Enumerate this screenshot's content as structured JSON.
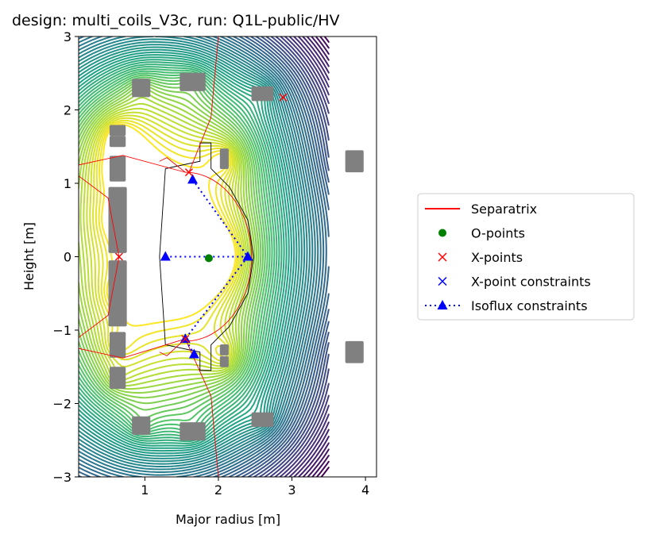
{
  "chart_data": {
    "type": "line",
    "title": "design: multi_coils_V3c, run: Q1L-public/HV",
    "xlabel": "Major radius [m]",
    "ylabel": "Height [m]",
    "xlim": [
      0.1,
      4.15
    ],
    "ylim": [
      -3,
      3
    ],
    "xticks": [
      "1",
      "2",
      "3",
      "4"
    ],
    "yticks": [
      "−3",
      "−2",
      "−1",
      "0",
      "1",
      "2",
      "3"
    ],
    "grid": false,
    "legend_placement": "right, outside plot",
    "legend": [
      {
        "label": "Separatrix",
        "color": "#ff0000",
        "marker": "line"
      },
      {
        "label": "O-points",
        "color": "#008000",
        "marker": "circle"
      },
      {
        "label": "X-points",
        "color": "#ff0000",
        "marker": "x"
      },
      {
        "label": "X-point constraints",
        "color": "#0000ff",
        "marker": "x"
      },
      {
        "label": "Isoflux constraints",
        "color": "#0000ff",
        "marker": "triangle-dotted-line"
      }
    ],
    "o_points": [
      [
        1.87,
        -0.02
      ]
    ],
    "x_points": [
      [
        0.65,
        0.0
      ],
      [
        1.6,
        1.15
      ],
      [
        1.55,
        -1.12
      ],
      [
        2.88,
        2.17
      ]
    ],
    "isoflux_constraints": [
      [
        1.28,
        0.0
      ],
      [
        1.65,
        1.05
      ],
      [
        2.4,
        0.0
      ],
      [
        1.67,
        -1.33
      ],
      [
        1.55,
        -1.12
      ]
    ],
    "coils": [
      {
        "r": 0.63,
        "z": 1.72,
        "w": 0.22,
        "h": 0.15
      },
      {
        "r": 0.63,
        "z": 1.57,
        "w": 0.22,
        "h": 0.15
      },
      {
        "r": 0.63,
        "z": 1.2,
        "w": 0.22,
        "h": 0.35
      },
      {
        "r": 0.63,
        "z": 0.5,
        "w": 0.25,
        "h": 0.9
      },
      {
        "r": 0.63,
        "z": -0.5,
        "w": 0.25,
        "h": 0.9
      },
      {
        "r": 0.63,
        "z": -1.2,
        "w": 0.22,
        "h": 0.35
      },
      {
        "r": 0.63,
        "z": -1.65,
        "w": 0.22,
        "h": 0.3
      },
      {
        "r": 0.95,
        "z": 2.3,
        "w": 0.25,
        "h": 0.25
      },
      {
        "r": 0.95,
        "z": -2.3,
        "w": 0.25,
        "h": 0.25
      },
      {
        "r": 1.65,
        "z": 2.38,
        "w": 0.35,
        "h": 0.25
      },
      {
        "r": 1.65,
        "z": -2.38,
        "w": 0.35,
        "h": 0.25
      },
      {
        "r": 2.6,
        "z": 2.22,
        "w": 0.3,
        "h": 0.2
      },
      {
        "r": 2.6,
        "z": -2.22,
        "w": 0.3,
        "h": 0.2
      },
      {
        "r": 2.08,
        "z": 1.4,
        "w": 0.12,
        "h": 0.15
      },
      {
        "r": 2.08,
        "z": 1.27,
        "w": 0.12,
        "h": 0.15
      },
      {
        "r": 2.08,
        "z": -1.27,
        "w": 0.12,
        "h": 0.15
      },
      {
        "r": 2.08,
        "z": -1.43,
        "w": 0.12,
        "h": 0.15
      },
      {
        "r": 3.85,
        "z": 1.3,
        "w": 0.25,
        "h": 0.3
      },
      {
        "r": 3.85,
        "z": -1.3,
        "w": 0.25,
        "h": 0.3
      }
    ],
    "colors": {
      "separatrix": "#ff0000",
      "opoint": "#008000",
      "constraint": "#0000ff",
      "coil": "#808080",
      "wall": "#000000"
    }
  }
}
